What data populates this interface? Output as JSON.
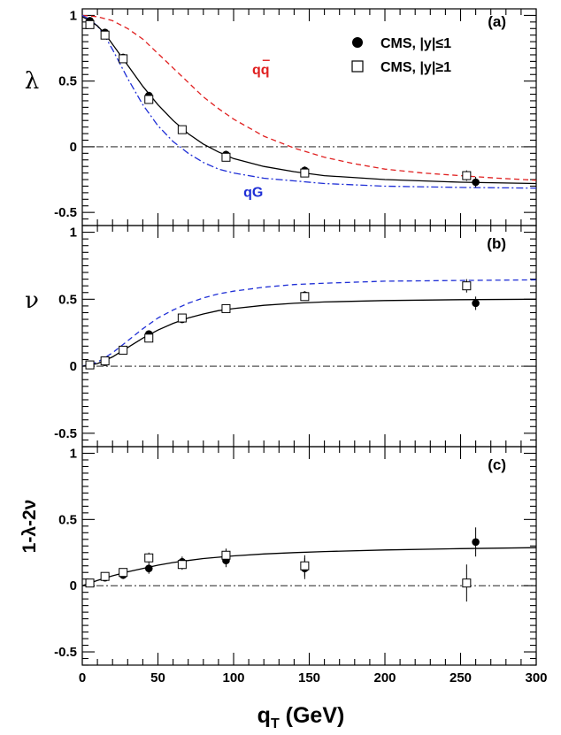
{
  "chart_data": [
    {
      "type": "scatter",
      "panel": "(a)",
      "ylabel": "λ",
      "xlabel": "q_T (GeV)",
      "xlim": [
        0,
        300
      ],
      "ylim": [
        -0.6,
        1.05
      ],
      "xticks": [
        0,
        50,
        100,
        150,
        200,
        250,
        300
      ],
      "yticks": [
        -0.5,
        0,
        0.5,
        1
      ],
      "ytick_labels": [
        "-0.5",
        "0",
        "0.5",
        "1"
      ],
      "legend": {
        "position": "top-right",
        "entries": [
          "CMS, |y|≤1",
          "CMS, |y|≥1"
        ]
      },
      "series": [
        {
          "name": "CMS, |y|≤1",
          "marker": "filled-circle",
          "x": [
            5,
            15,
            27,
            44,
            66,
            95,
            147,
            260
          ],
          "y": [
            0.96,
            0.87,
            0.68,
            0.39,
            0.13,
            -0.06,
            -0.18,
            -0.27
          ],
          "err": [
            0.02,
            0.02,
            0.02,
            0.02,
            0.02,
            0.03,
            0.03,
            0.04
          ]
        },
        {
          "name": "CMS, |y|≥1",
          "marker": "open-square",
          "x": [
            5,
            15,
            27,
            44,
            66,
            95,
            147,
            254
          ],
          "y": [
            0.93,
            0.85,
            0.67,
            0.36,
            0.13,
            -0.08,
            -0.2,
            -0.22
          ],
          "err": [
            0.02,
            0.02,
            0.02,
            0.02,
            0.02,
            0.03,
            0.03,
            0.04
          ]
        }
      ],
      "curves": [
        {
          "name": "qq",
          "style": "dashed",
          "color": "#e02020",
          "x": [
            0,
            10,
            20,
            30,
            40,
            50,
            60,
            70,
            80,
            90,
            100,
            120,
            140,
            160,
            180,
            200,
            225,
            250,
            275,
            300
          ],
          "y": [
            1.0,
            0.99,
            0.96,
            0.9,
            0.82,
            0.71,
            0.6,
            0.49,
            0.38,
            0.29,
            0.21,
            0.08,
            -0.01,
            -0.08,
            -0.13,
            -0.17,
            -0.2,
            -0.22,
            -0.24,
            -0.255
          ]
        },
        {
          "name": "qG",
          "style": "dash-dot",
          "color": "#1f2fd6",
          "x": [
            0,
            5,
            10,
            15,
            20,
            25,
            30,
            40,
            50,
            60,
            70,
            80,
            90,
            100,
            120,
            140,
            160,
            200,
            250,
            300
          ],
          "y": [
            1.0,
            0.97,
            0.92,
            0.84,
            0.74,
            0.63,
            0.52,
            0.32,
            0.16,
            0.04,
            -0.05,
            -0.12,
            -0.17,
            -0.2,
            -0.24,
            -0.26,
            -0.28,
            -0.3,
            -0.31,
            -0.315
          ]
        },
        {
          "name": "fit",
          "style": "solid",
          "color": "#000000",
          "x": [
            0,
            5,
            10,
            15,
            20,
            25,
            30,
            40,
            50,
            60,
            70,
            80,
            90,
            100,
            120,
            140,
            160,
            200,
            250,
            300
          ],
          "y": [
            0.99,
            0.96,
            0.92,
            0.86,
            0.78,
            0.7,
            0.62,
            0.46,
            0.32,
            0.2,
            0.1,
            0.02,
            -0.04,
            -0.09,
            -0.15,
            -0.19,
            -0.22,
            -0.25,
            -0.27,
            -0.28
          ]
        }
      ],
      "curve_labels": [
        {
          "text": "qq",
          "series": "qq",
          "x": 118,
          "y": 0.55
        },
        {
          "text": "qG",
          "series": "qG",
          "x": 113,
          "y": -0.38
        }
      ],
      "reference_line": {
        "y": 0,
        "style": "dash-dot"
      }
    },
    {
      "type": "scatter",
      "panel": "(b)",
      "ylabel": "ν",
      "xlabel": "q_T (GeV)",
      "xlim": [
        0,
        300
      ],
      "ylim": [
        -0.6,
        1.05
      ],
      "xticks": [
        0,
        50,
        100,
        150,
        200,
        250,
        300
      ],
      "yticks": [
        -0.5,
        0,
        0.5,
        1
      ],
      "ytick_labels": [
        "-0.5",
        "0",
        "0.5",
        "1"
      ],
      "series": [
        {
          "name": "CMS, |y|≤1",
          "marker": "filled-circle",
          "x": [
            5,
            15,
            27,
            44,
            66,
            95,
            147,
            260
          ],
          "y": [
            0.01,
            0.03,
            0.12,
            0.24,
            0.35,
            0.43,
            0.53,
            0.47
          ],
          "err": [
            0.01,
            0.02,
            0.02,
            0.02,
            0.02,
            0.02,
            0.03,
            0.05
          ]
        },
        {
          "name": "CMS, |y|≥1",
          "marker": "open-square",
          "x": [
            5,
            15,
            27,
            44,
            66,
            95,
            147,
            254
          ],
          "y": [
            0.01,
            0.04,
            0.12,
            0.21,
            0.36,
            0.43,
            0.52,
            0.6
          ],
          "err": [
            0.01,
            0.02,
            0.02,
            0.02,
            0.02,
            0.02,
            0.03,
            0.05
          ]
        }
      ],
      "curves": [
        {
          "name": "qG",
          "style": "dashed",
          "color": "#1f2fd6",
          "x": [
            0,
            10,
            20,
            30,
            40,
            50,
            60,
            70,
            80,
            90,
            100,
            120,
            140,
            160,
            200,
            250,
            300
          ],
          "y": [
            0.0,
            0.03,
            0.1,
            0.19,
            0.28,
            0.36,
            0.42,
            0.47,
            0.51,
            0.54,
            0.56,
            0.59,
            0.61,
            0.62,
            0.635,
            0.64,
            0.645
          ]
        },
        {
          "name": "fit",
          "style": "solid",
          "color": "#000000",
          "x": [
            0,
            10,
            20,
            30,
            40,
            50,
            60,
            70,
            80,
            90,
            100,
            120,
            140,
            160,
            200,
            250,
            300
          ],
          "y": [
            0.0,
            0.02,
            0.07,
            0.14,
            0.21,
            0.27,
            0.32,
            0.36,
            0.39,
            0.415,
            0.43,
            0.455,
            0.47,
            0.48,
            0.49,
            0.497,
            0.5
          ]
        }
      ],
      "reference_line": {
        "y": 0,
        "style": "dash-dot"
      }
    },
    {
      "type": "scatter",
      "panel": "(c)",
      "ylabel": "1-λ-2ν",
      "xlabel": "q_T (GeV)",
      "xlim": [
        0,
        300
      ],
      "ylim": [
        -0.6,
        1.05
      ],
      "xticks": [
        0,
        50,
        100,
        150,
        200,
        250,
        300
      ],
      "xtick_labels": [
        "0",
        "50",
        "100",
        "150",
        "200",
        "250",
        "300"
      ],
      "yticks": [
        -0.5,
        0,
        0.5,
        1
      ],
      "ytick_labels": [
        "-0.5",
        "0",
        "0.5",
        "1"
      ],
      "series": [
        {
          "name": "CMS, |y|≤1",
          "marker": "filled-circle",
          "x": [
            5,
            15,
            27,
            44,
            66,
            95,
            147,
            260
          ],
          "y": [
            0.02,
            0.06,
            0.08,
            0.13,
            0.18,
            0.19,
            0.13,
            0.33
          ],
          "err": [
            0.02,
            0.02,
            0.03,
            0.04,
            0.04,
            0.05,
            0.08,
            0.11
          ]
        },
        {
          "name": "CMS, |y|≥1",
          "marker": "open-square",
          "x": [
            5,
            15,
            27,
            44,
            66,
            95,
            147,
            254
          ],
          "y": [
            0.02,
            0.07,
            0.1,
            0.21,
            0.16,
            0.23,
            0.15,
            0.02
          ],
          "err": [
            0.02,
            0.02,
            0.03,
            0.04,
            0.04,
            0.05,
            0.08,
            0.14
          ]
        }
      ],
      "curves": [
        {
          "name": "fit",
          "style": "solid",
          "color": "#000000",
          "x": [
            0,
            10,
            20,
            30,
            40,
            50,
            60,
            70,
            80,
            90,
            100,
            120,
            140,
            160,
            200,
            250,
            300
          ],
          "y": [
            0.0,
            0.04,
            0.075,
            0.105,
            0.13,
            0.155,
            0.175,
            0.19,
            0.205,
            0.215,
            0.225,
            0.24,
            0.25,
            0.258,
            0.27,
            0.28,
            0.287
          ]
        }
      ],
      "reference_line": {
        "y": 0,
        "style": "dash-dot"
      }
    }
  ]
}
